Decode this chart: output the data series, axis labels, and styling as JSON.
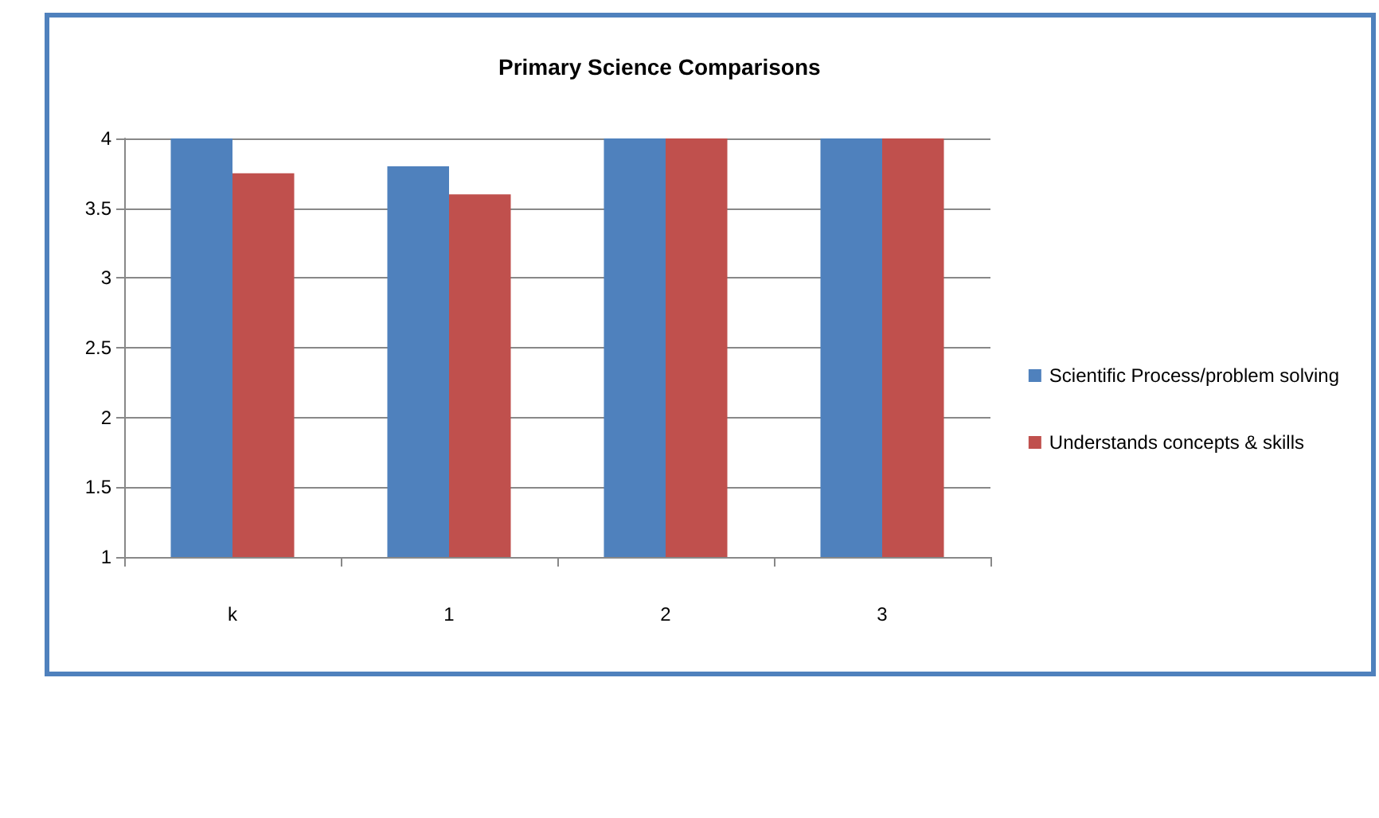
{
  "chart_data": {
    "type": "bar",
    "title": "Primary Science Comparisons",
    "categories": [
      "k",
      "1",
      "2",
      "3"
    ],
    "series": [
      {
        "name": "Scientific Process/problem solving",
        "color": "#4f81bd",
        "values": [
          4,
          3.8,
          4,
          4
        ]
      },
      {
        "name": "Understands concepts & skills",
        "color": "#c0504d",
        "values": [
          3.75,
          3.6,
          4,
          4
        ]
      }
    ],
    "ylim": [
      1,
      4
    ],
    "yticks": [
      1,
      1.5,
      2,
      2.5,
      3,
      3.5,
      4
    ],
    "grid": "y",
    "legend": "right"
  }
}
